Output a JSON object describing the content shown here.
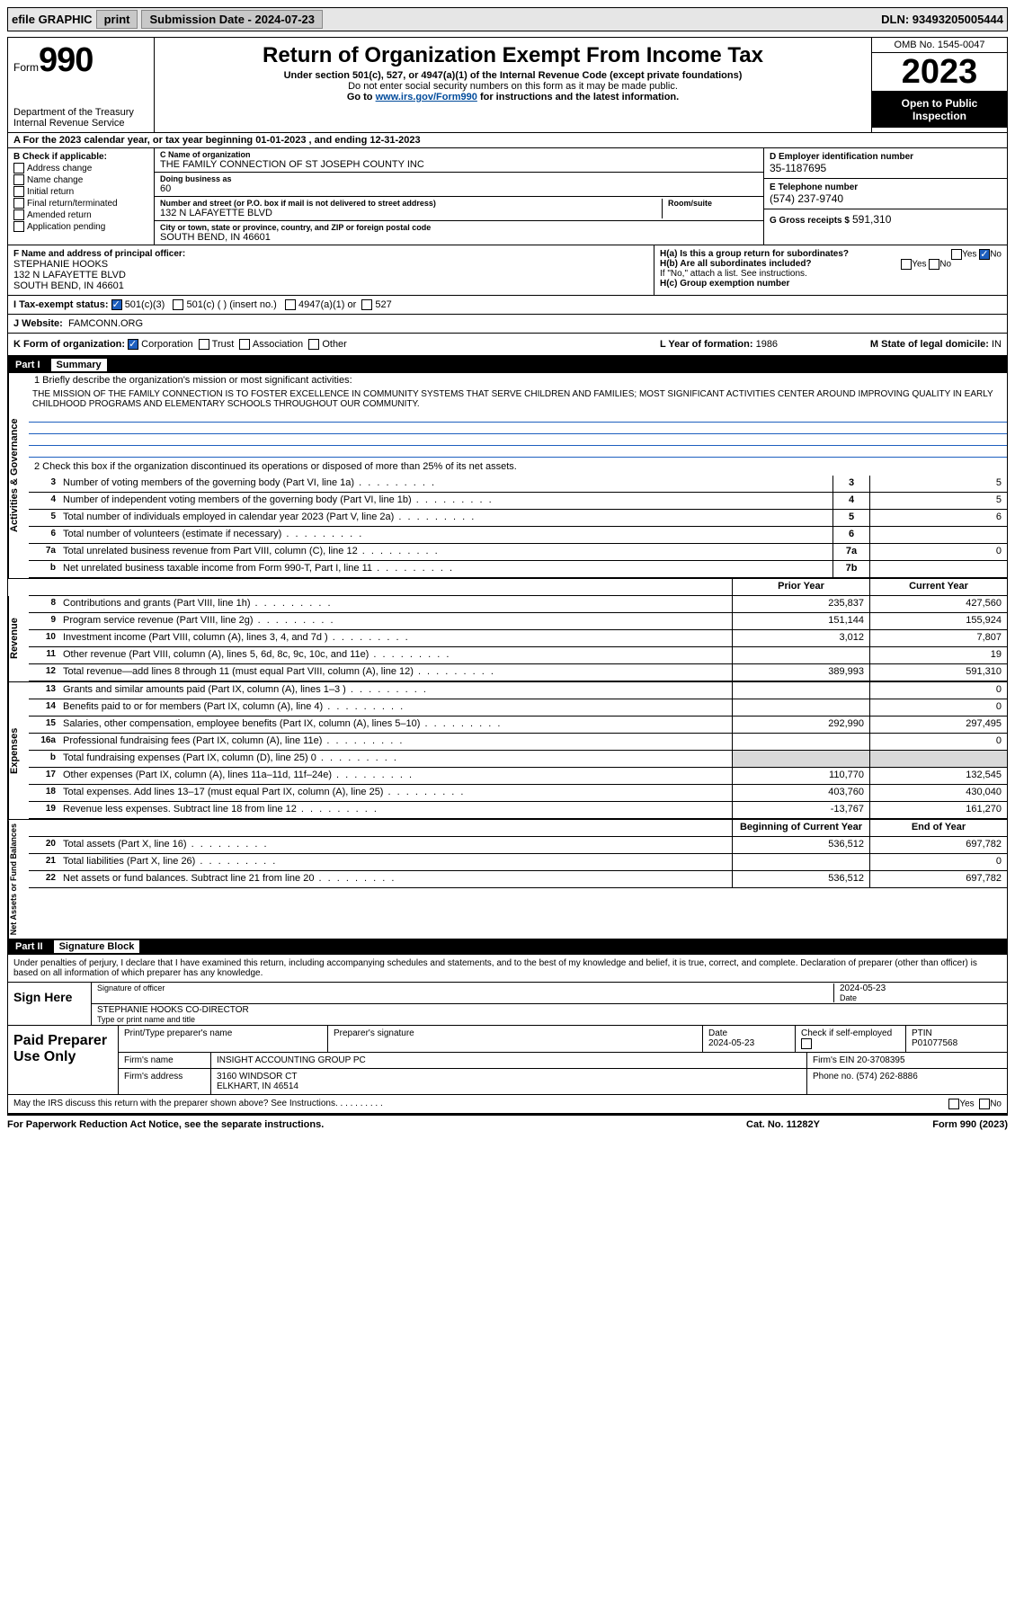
{
  "topbar": {
    "efile": "efile GRAPHIC",
    "print": "print",
    "subdate_label": "Submission Date - 2024-07-23",
    "dln": "DLN: 93493205005444"
  },
  "header": {
    "form_label": "Form",
    "form_no": "990",
    "dept1": "Department of the Treasury",
    "dept2": "Internal Revenue Service",
    "title": "Return of Organization Exempt From Income Tax",
    "sub1": "Under section 501(c), 527, or 4947(a)(1) of the Internal Revenue Code (except private foundations)",
    "sub2": "Do not enter social security numbers on this form as it may be made public.",
    "sub3_pre": "Go to ",
    "sub3_link": "www.irs.gov/Form990",
    "sub3_post": " for instructions and the latest information.",
    "omb": "OMB No. 1545-0047",
    "year": "2023",
    "open_public": "Open to Public Inspection"
  },
  "period": "A For the 2023 calendar year, or tax year beginning 01-01-2023   , and ending 12-31-2023",
  "sectionB": {
    "label": "B Check if applicable:",
    "opts": [
      "Address change",
      "Name change",
      "Initial return",
      "Final return/terminated",
      "Amended return",
      "Application pending"
    ]
  },
  "org": {
    "name_label": "C Name of organization",
    "name": "THE FAMILY CONNECTION OF ST JOSEPH COUNTY INC",
    "dba_label": "Doing business as",
    "dba": "60",
    "street_label": "Number and street (or P.O. box if mail is not delivered to street address)",
    "room_label": "Room/suite",
    "street": "132 N LAFAYETTE BLVD",
    "city_label": "City or town, state or province, country, and ZIP or foreign postal code",
    "city": "SOUTH BEND, IN  46601"
  },
  "right": {
    "ein_label": "D Employer identification number",
    "ein": "35-1187695",
    "phone_label": "E Telephone number",
    "phone": "(574) 237-9740",
    "gross_label": "G Gross receipts $",
    "gross": "591,310"
  },
  "f": {
    "label": "F  Name and address of principal officer:",
    "name": "STEPHANIE HOOKS",
    "addr1": "132 N LAFAYETTE BLVD",
    "addr2": "SOUTH BEND, IN  46601"
  },
  "h": {
    "ha": "H(a)  Is this a group return for subordinates?",
    "ha_yes": "Yes",
    "ha_no": "No",
    "hb": "H(b)  Are all subordinates included?",
    "hb_yes": "Yes",
    "hb_no": "No",
    "hb_note": "If \"No,\" attach a list. See instructions.",
    "hc": "H(c)  Group exemption number"
  },
  "i": {
    "label": "I   Tax-exempt status:",
    "opt1": "501(c)(3)",
    "opt2": "501(c) (   ) (insert no.)",
    "opt3": "4947(a)(1) or",
    "opt4": "527"
  },
  "j": {
    "label": "J   Website:",
    "value": "FAMCONN.ORG"
  },
  "k": {
    "label": "K Form of organization:",
    "opts": [
      "Corporation",
      "Trust",
      "Association",
      "Other"
    ],
    "l_label": "L Year of formation:",
    "l_val": "1986",
    "m_label": "M State of legal domicile:",
    "m_val": "IN"
  },
  "part1": {
    "label": "Part I",
    "title": "Summary"
  },
  "governance": {
    "sidelabel": "Activities & Governance",
    "line1_label": "1   Briefly describe the organization's mission or most significant activities:",
    "mission": "THE MISSION OF THE FAMILY CONNECTION IS TO FOSTER EXCELLENCE IN COMMUNITY SYSTEMS THAT SERVE CHILDREN AND FAMILIES; MOST SIGNIFICANT ACTIVITIES CENTER AROUND IMPROVING QUALITY IN EARLY CHILDHOOD PROGRAMS AND ELEMENTARY SCHOOLS THROUGHOUT OUR COMMUNITY.",
    "line2": "2   Check this box        if the organization discontinued its operations or disposed of more than 25% of its net assets.",
    "rows": [
      {
        "n": "3",
        "d": "Number of voting members of the governing body (Part VI, line 1a)",
        "box": "3",
        "v": "5"
      },
      {
        "n": "4",
        "d": "Number of independent voting members of the governing body (Part VI, line 1b)",
        "box": "4",
        "v": "5"
      },
      {
        "n": "5",
        "d": "Total number of individuals employed in calendar year 2023 (Part V, line 2a)",
        "box": "5",
        "v": "6"
      },
      {
        "n": "6",
        "d": "Total number of volunteers (estimate if necessary)",
        "box": "6",
        "v": ""
      },
      {
        "n": "7a",
        "d": "Total unrelated business revenue from Part VIII, column (C), line 12",
        "box": "7a",
        "v": "0"
      },
      {
        "n": "b",
        "d": "Net unrelated business taxable income from Form 990-T, Part I, line 11",
        "box": "7b",
        "v": ""
      }
    ]
  },
  "revexp_header": {
    "prior": "Prior Year",
    "curr": "Current Year"
  },
  "revenue": {
    "sidelabel": "Revenue",
    "rows": [
      {
        "n": "8",
        "d": "Contributions and grants (Part VIII, line 1h)",
        "p": "235,837",
        "c": "427,560"
      },
      {
        "n": "9",
        "d": "Program service revenue (Part VIII, line 2g)",
        "p": "151,144",
        "c": "155,924"
      },
      {
        "n": "10",
        "d": "Investment income (Part VIII, column (A), lines 3, 4, and 7d )",
        "p": "3,012",
        "c": "7,807"
      },
      {
        "n": "11",
        "d": "Other revenue (Part VIII, column (A), lines 5, 6d, 8c, 9c, 10c, and 11e)",
        "p": "",
        "c": "19"
      },
      {
        "n": "12",
        "d": "Total revenue—add lines 8 through 11 (must equal Part VIII, column (A), line 12)",
        "p": "389,993",
        "c": "591,310"
      }
    ]
  },
  "expenses": {
    "sidelabel": "Expenses",
    "rows": [
      {
        "n": "13",
        "d": "Grants and similar amounts paid (Part IX, column (A), lines 1–3 )",
        "p": "",
        "c": "0"
      },
      {
        "n": "14",
        "d": "Benefits paid to or for members (Part IX, column (A), line 4)",
        "p": "",
        "c": "0"
      },
      {
        "n": "15",
        "d": "Salaries, other compensation, employee benefits (Part IX, column (A), lines 5–10)",
        "p": "292,990",
        "c": "297,495"
      },
      {
        "n": "16a",
        "d": "Professional fundraising fees (Part IX, column (A), line 11e)",
        "p": "",
        "c": "0"
      },
      {
        "n": "b",
        "d": "Total fundraising expenses (Part IX, column (D), line 25) 0",
        "p": "shaded",
        "c": "shaded"
      },
      {
        "n": "17",
        "d": "Other expenses (Part IX, column (A), lines 11a–11d, 11f–24e)",
        "p": "110,770",
        "c": "132,545"
      },
      {
        "n": "18",
        "d": "Total expenses. Add lines 13–17 (must equal Part IX, column (A), line 25)",
        "p": "403,760",
        "c": "430,040"
      },
      {
        "n": "19",
        "d": "Revenue less expenses. Subtract line 18 from line 12",
        "p": "-13,767",
        "c": "161,270"
      }
    ]
  },
  "netassets": {
    "sidelabel": "Net Assets or Fund Balances",
    "header": {
      "prior": "Beginning of Current Year",
      "curr": "End of Year"
    },
    "rows": [
      {
        "n": "20",
        "d": "Total assets (Part X, line 16)",
        "p": "536,512",
        "c": "697,782"
      },
      {
        "n": "21",
        "d": "Total liabilities (Part X, line 26)",
        "p": "",
        "c": "0"
      },
      {
        "n": "22",
        "d": "Net assets or fund balances. Subtract line 21 from line 20",
        "p": "536,512",
        "c": "697,782"
      }
    ]
  },
  "part2": {
    "label": "Part II",
    "title": "Signature Block"
  },
  "sig": {
    "declaration": "Under penalties of perjury, I declare that I have examined this return, including accompanying schedules and statements, and to the best of my knowledge and belief, it is true, correct, and complete. Declaration of preparer (other than officer) is based on all information of which preparer has any knowledge.",
    "sign_here": "Sign Here",
    "sig_label": "Signature of officer",
    "date_label": "Date",
    "date": "2024-05-23",
    "name": "STEPHANIE HOOKS CO-DIRECTOR",
    "type_label": "Type or print name and title"
  },
  "paid": {
    "label": "Paid Preparer Use Only",
    "h1": "Print/Type preparer's name",
    "h2": "Preparer's signature",
    "h3": "Date",
    "h4": "Check        if self-employed",
    "h5": "PTIN",
    "date": "2024-05-23",
    "ptin": "P01077568",
    "firm_label": "Firm's name",
    "firm": "INSIGHT ACCOUNTING GROUP PC",
    "ein_label": "Firm's EIN",
    "ein": "20-3708395",
    "addr_label": "Firm's address",
    "addr1": "3160 WINDSOR CT",
    "addr2": "ELKHART, IN  46514",
    "phone_label": "Phone no.",
    "phone": "(574) 262-8886"
  },
  "footer": {
    "discuss": "May the IRS discuss this return with the preparer shown above? See Instructions.",
    "yes": "Yes",
    "no": "No",
    "paperwork": "For Paperwork Reduction Act Notice, see the separate instructions.",
    "cat": "Cat. No. 11282Y",
    "form": "Form 990 (2023)"
  }
}
